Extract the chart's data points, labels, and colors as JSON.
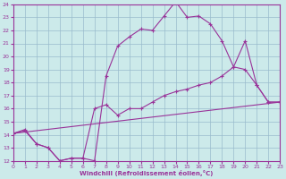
{
  "xlabel": "Windchill (Refroidissement éolien,°C)",
  "xlim": [
    0,
    23
  ],
  "ylim": [
    12,
    24
  ],
  "xticks": [
    0,
    1,
    2,
    3,
    4,
    5,
    6,
    7,
    8,
    9,
    10,
    11,
    12,
    13,
    14,
    15,
    16,
    17,
    18,
    19,
    20,
    21,
    22,
    23
  ],
  "yticks": [
    12,
    13,
    14,
    15,
    16,
    17,
    18,
    19,
    20,
    21,
    22,
    23,
    24
  ],
  "background_color": "#cceaea",
  "line_color": "#993399",
  "grid_color": "#99bbcc",
  "line1_x": [
    0,
    1,
    2,
    3,
    4,
    5,
    6,
    7,
    8,
    9,
    10,
    11,
    12,
    13,
    14,
    15,
    16,
    17,
    18,
    19,
    20,
    21,
    22,
    23
  ],
  "line1_y": [
    14.1,
    14.4,
    13.3,
    13.0,
    12.0,
    12.2,
    12.2,
    12.0,
    18.5,
    20.8,
    21.5,
    22.1,
    22.0,
    23.1,
    24.2,
    23.0,
    23.1,
    22.5,
    21.2,
    19.2,
    21.2,
    17.8,
    16.5,
    16.5
  ],
  "line2_x": [
    0,
    1,
    2,
    3,
    4,
    5,
    6,
    7,
    8,
    9,
    10,
    11,
    12,
    13,
    14,
    15,
    16,
    17,
    18,
    19,
    20,
    21,
    22,
    23
  ],
  "line2_y": [
    14.1,
    14.3,
    13.3,
    13.0,
    12.0,
    12.2,
    12.2,
    16.0,
    16.3,
    15.5,
    16.0,
    16.0,
    16.5,
    17.0,
    17.3,
    17.5,
    17.8,
    18.0,
    18.5,
    19.2,
    19.0,
    17.8,
    16.5,
    16.5
  ],
  "line3_x": [
    0,
    23
  ],
  "line3_y": [
    14.1,
    16.5
  ]
}
